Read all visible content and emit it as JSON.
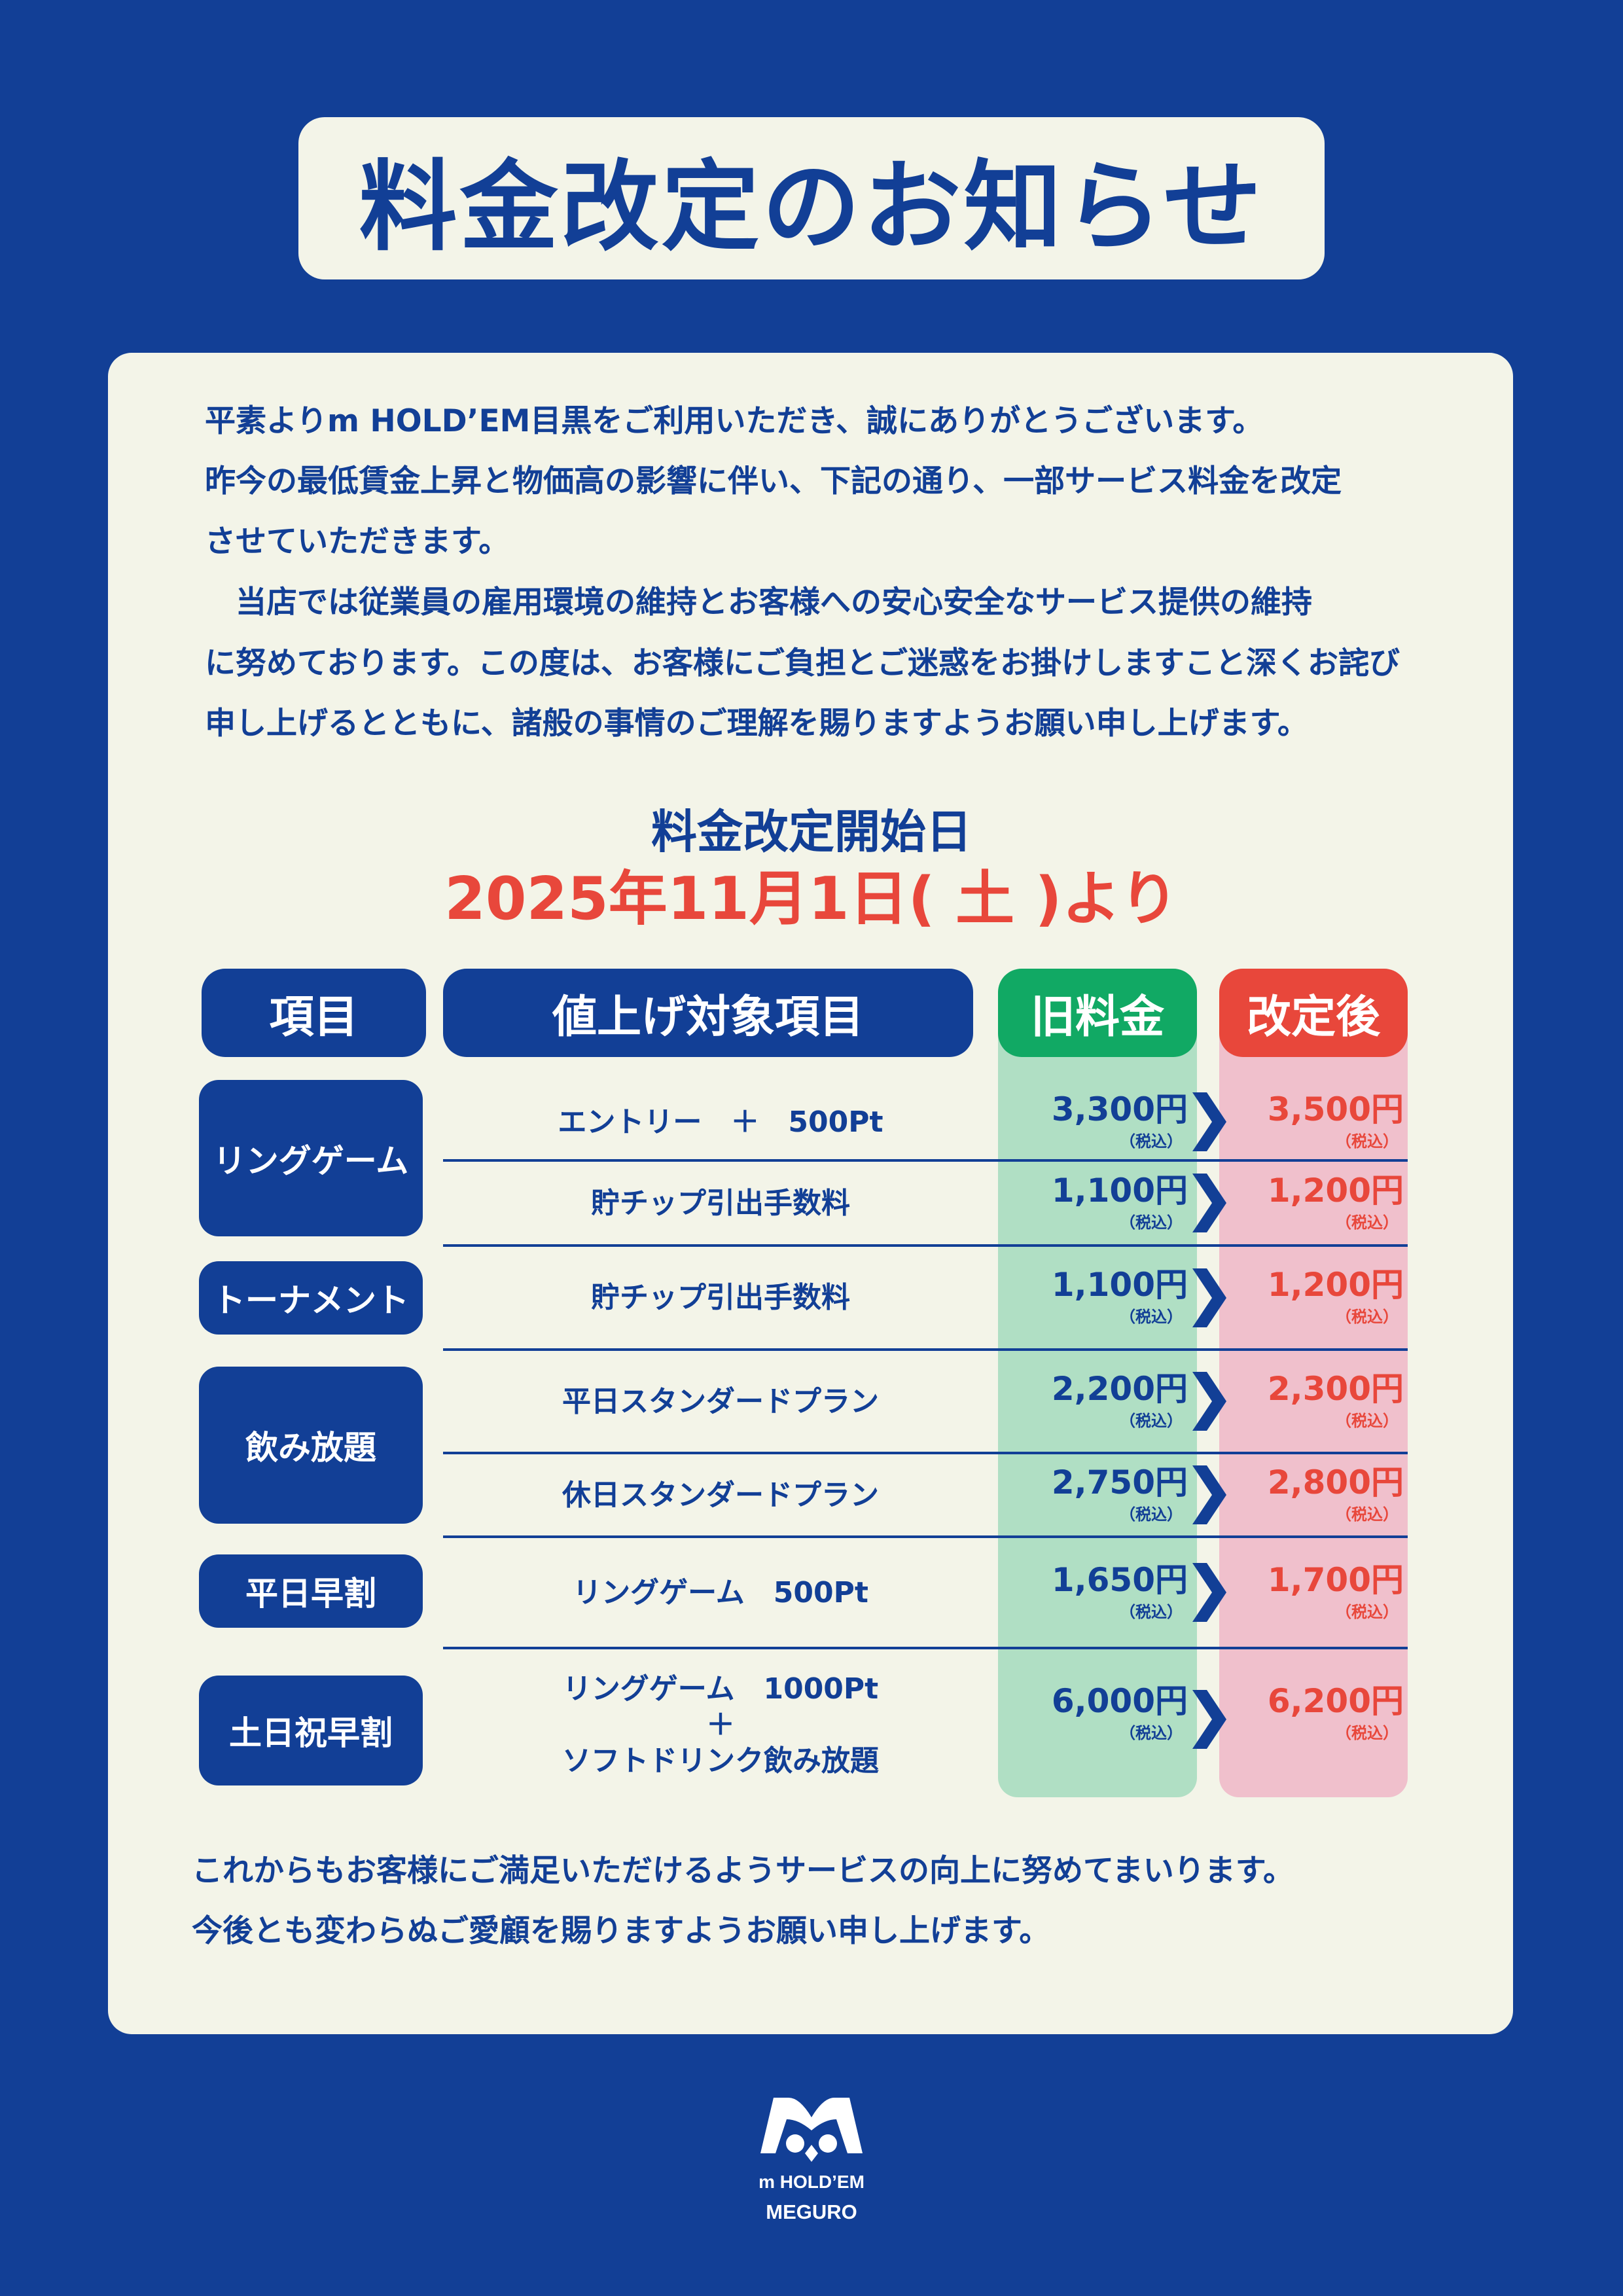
{
  "title": "料金改定のお知らせ",
  "intro_lines": [
    "平素よりm HOLD’EM目黒をご利用いただき、誠にありがとうございます。",
    "昨今の最低賃金上昇と物価高の影響に伴い、下記の通り、一部サービス料金を改定",
    "させていただきます。",
    "　当店では従業員の雇用環境の維持とお客様への安心安全なサービス提供の維持",
    "に努めております。この度は、お客様にご負担とご迷惑をお掛けしますこと深くお詫び",
    "申し上げるとともに、諸般の事情のご理解を賜りますようお願い申し上げます。"
  ],
  "effective": {
    "label": "料金改定開始日",
    "date": "2025年11月1日( 土 )より"
  },
  "table": {
    "headers": {
      "category": "項目",
      "item": "値上げ対象項目",
      "old": "旧料金",
      "new": "改定後"
    },
    "tax_note": "（税込）",
    "categories": [
      "リングゲーム",
      "トーナメント",
      "飲み放題",
      "平日早割",
      "土日祝早割"
    ],
    "rows": [
      {
        "item": "エントリー　＋　500Pt",
        "old": "3,300円",
        "new": "3,500円"
      },
      {
        "item": "貯チップ引出手数料",
        "old": "1,100円",
        "new": "1,200円"
      },
      {
        "item": "貯チップ引出手数料",
        "old": "1,100円",
        "new": "1,200円"
      },
      {
        "item": "平日スタンダードプラン",
        "old": "2,200円",
        "new": "2,300円"
      },
      {
        "item": "休日スタンダードプラン",
        "old": "2,750円",
        "new": "2,800円"
      },
      {
        "item": "リングゲーム　500Pt",
        "old": "1,650円",
        "new": "1,700円"
      },
      {
        "item_line1": "リングゲーム　1000Pt",
        "item_line2": "＋",
        "item_line3": "ソフトドリンク飲み放題",
        "old": "6,000円",
        "new": "6,200円"
      }
    ]
  },
  "closing_lines": [
    "これからもお客様にご満足いただけるようサービスの向上に努めてまいります。",
    "今後とも変わらぬご愛顧を賜りますようお願い申し上げます。"
  ],
  "logo": {
    "line1": "m HOLD’EM",
    "line2": "MEGURO"
  },
  "colors": {
    "background": "#123f96",
    "card": "#f3f4e8",
    "old_header": "#11a964",
    "old_column": "#b0dfc4",
    "new_header": "#e8473b",
    "new_column": "#f0c0cc",
    "new_price": "#e8473b"
  }
}
